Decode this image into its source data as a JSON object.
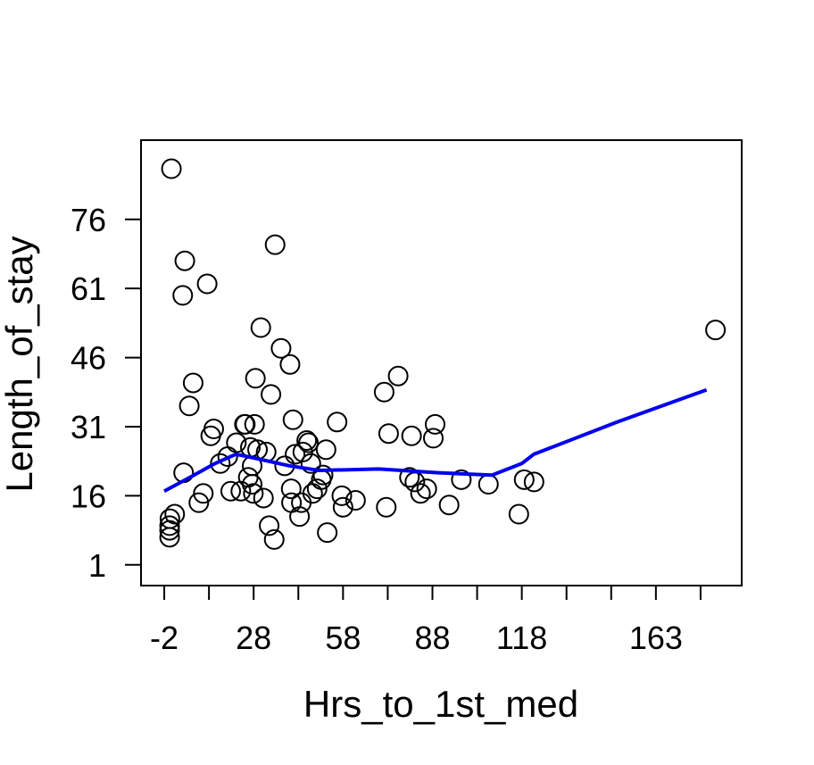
{
  "chart_data": {
    "type": "scatter",
    "title": "",
    "xlabel": "Hrs_to_1st_med",
    "ylabel": "Length_of_stay",
    "xlim": [
      -9.8,
      191.8
    ],
    "ylim": [
      -3.5,
      93.2
    ],
    "x_ticks": [
      -2,
      13,
      28,
      43,
      58,
      73,
      88,
      103,
      118,
      133,
      148,
      163,
      178
    ],
    "x_tick_labels": [
      "-2",
      "28",
      "58",
      "88",
      "118",
      "163"
    ],
    "x_tick_label_values": [
      -2,
      28,
      58,
      88,
      118,
      163
    ],
    "y_ticks": [
      1,
      16,
      31,
      46,
      61,
      76
    ],
    "y_tick_labels": [
      "1",
      "16",
      "31",
      "46",
      "61",
      "76"
    ],
    "grid": false,
    "colors": {
      "points": "#000000",
      "trend": "#0000ee",
      "frame": "#000000"
    },
    "series": [
      {
        "kind": "points",
        "x": [
          0.4,
          -0.2,
          -0.2,
          -0.2,
          -0.1,
          1.5,
          4.5,
          4.2,
          4.9,
          6.4,
          7.7,
          9.6,
          11.1,
          12.4,
          13.6,
          14.6,
          16.8,
          19.3,
          20.3,
          22.2,
          23.7,
          24.9,
          25.2,
          26.2,
          26.9,
          27.5,
          27.5,
          27.9,
          28.3,
          28.6,
          29.3,
          30.4,
          31.3,
          32.2,
          33.2,
          33.8,
          34.9,
          35.2,
          37.2,
          38.4,
          40.2,
          40.6,
          40.7,
          41.2,
          41.9,
          43.4,
          44.0,
          44.5,
          45.8,
          46.4,
          47.2,
          47.8,
          49.3,
          50.7,
          51.3,
          52.3,
          52.7,
          56.0,
          57.6,
          58.0,
          62.2,
          71.8,
          72.5,
          73.3,
          76.5,
          80.3,
          81.0,
          82.1,
          84.0,
          86.1,
          88.3,
          88.9,
          93.6,
          97.7,
          106.8,
          117.0,
          118.8,
          122.1,
          183.0
        ],
        "y": [
          87.0,
          8.5,
          7.0,
          9.5,
          11.0,
          12.0,
          21.0,
          59.5,
          67.0,
          35.5,
          40.5,
          14.5,
          16.5,
          62.0,
          29.0,
          30.5,
          23.0,
          24.5,
          17.0,
          27.5,
          17.0,
          31.5,
          31.5,
          20.0,
          26.5,
          18.5,
          22.5,
          16.5,
          31.5,
          41.5,
          26.0,
          52.5,
          15.5,
          25.5,
          9.5,
          38.0,
          6.5,
          70.5,
          48.0,
          22.5,
          44.5,
          17.5,
          14.5,
          32.5,
          25.0,
          11.5,
          14.5,
          25.5,
          28.0,
          27.5,
          23.0,
          16.5,
          17.5,
          19.5,
          20.5,
          26.0,
          8.0,
          32.0,
          16.0,
          13.5,
          15.0,
          38.5,
          13.5,
          29.5,
          42.0,
          20.0,
          29.0,
          19.0,
          16.5,
          17.5,
          28.5,
          31.5,
          14.0,
          19.5,
          18.5,
          12.0,
          19.5,
          19.0,
          52.0
        ]
      },
      {
        "kind": "trend",
        "x": [
          -2,
          8,
          15,
          22,
          26,
          40,
          50,
          70,
          90,
          108,
          118,
          122,
          150,
          180
        ],
        "y": [
          17.0,
          20.5,
          23.0,
          25.0,
          24.5,
          22.5,
          21.5,
          21.8,
          21.0,
          20.5,
          23.0,
          25.0,
          32.0,
          39.0
        ]
      }
    ]
  }
}
